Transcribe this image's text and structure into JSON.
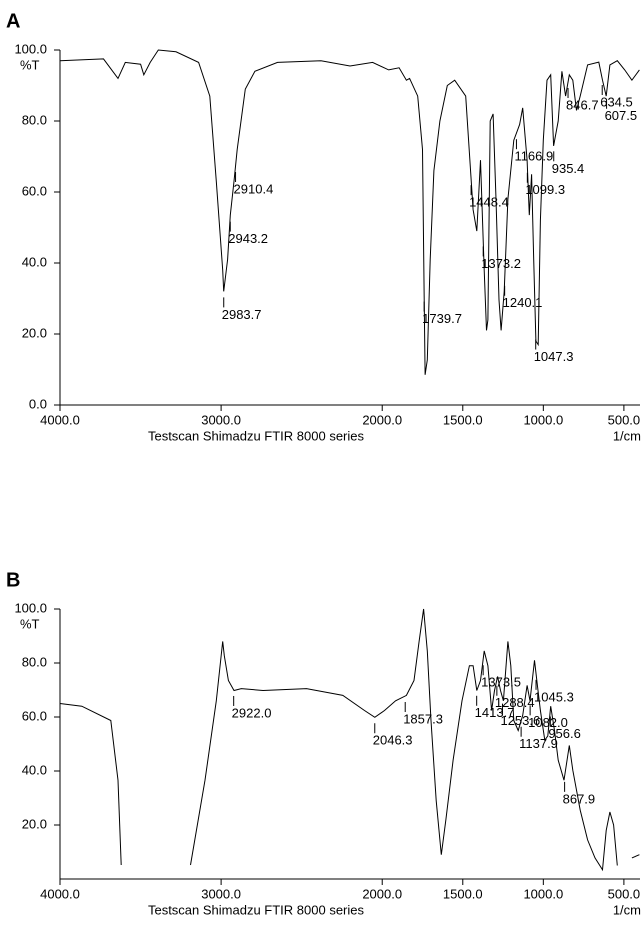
{
  "chart_data": [
    {
      "type": "line",
      "title": "A",
      "ylabel": "%T",
      "xlabel": "Testscan Shimadzu FTIR 8000 series",
      "xunit": "1/cm",
      "xlim": [
        4000,
        400
      ],
      "ylim": [
        0,
        100
      ],
      "xticks": [
        {
          "value": 4000,
          "label": "4000.0"
        },
        {
          "value": 3000,
          "label": "3000.0"
        },
        {
          "value": 2000,
          "label": "2000.0"
        },
        {
          "value": 1500,
          "label": "1500.0"
        },
        {
          "value": 1000,
          "label": "1000.0"
        },
        {
          "value": 500,
          "label": "500.0"
        }
      ],
      "yticks": [
        {
          "value": 0,
          "label": "0.0"
        },
        {
          "value": 20,
          "label": "20.0"
        },
        {
          "value": 40,
          "label": "40.0"
        },
        {
          "value": 60,
          "label": "60.0"
        },
        {
          "value": 80,
          "label": "80.0"
        },
        {
          "value": 100,
          "label": "100.0"
        }
      ],
      "x": [
        4000,
        3730,
        3640,
        3595,
        3500,
        3480,
        3440,
        3390,
        3280,
        3140,
        3070,
        3030,
        2990,
        2983.7,
        2960,
        2943,
        2920,
        2900,
        2850,
        2790,
        2650,
        2380,
        2200,
        2060,
        1960,
        1895,
        1850,
        1830,
        1780,
        1750,
        1740,
        1734,
        1720,
        1702,
        1679,
        1642,
        1596,
        1550,
        1482,
        1436,
        1413,
        1390,
        1367,
        1353,
        1344,
        1330,
        1312,
        1294,
        1275,
        1262,
        1243,
        1220,
        1183,
        1147,
        1128,
        1101,
        1087,
        1073,
        1060,
        1046,
        1032,
        1018,
        1000,
        977,
        954,
        936,
        908,
        885,
        862,
        839,
        817,
        794,
        771,
        725,
        656,
        633,
        610,
        587,
        541,
        495,
        450,
        404
      ],
      "series": [
        {
          "name": "A",
          "color": "#000000",
          "values": [
            97,
            97.5,
            92,
            96.5,
            96,
            93,
            96.5,
            100,
            99.5,
            96.5,
            87,
            63,
            38,
            32,
            41,
            53.5,
            63,
            72,
            89,
            94,
            96.5,
            97,
            95.5,
            96.5,
            94.4,
            95,
            91.5,
            92,
            87,
            72,
            32,
            8.5,
            12.7,
            41,
            66,
            80,
            90,
            91.5,
            87,
            55,
            49,
            69,
            38,
            21,
            24,
            80,
            82,
            58,
            29.6,
            21,
            32,
            58,
            74.6,
            79,
            83.7,
            69,
            53.5,
            65,
            41,
            18,
            17,
            52,
            74.6,
            91.5,
            93,
            73,
            80,
            94,
            87,
            93,
            91.5,
            83,
            87,
            95.8,
            96.6,
            91.5,
            87,
            95.8,
            97,
            94.4,
            91.5,
            94.4
          ]
        }
      ],
      "peaks": [
        2983.7,
        2943.2,
        2910.4,
        1739.7,
        1448.4,
        1373.2,
        1240.1,
        1166.9,
        1099.3,
        1047.3,
        935.4,
        846.7,
        634.5,
        607.5
      ],
      "peak_labels": [
        "2983.7",
        "2943.2",
        "2910.4",
        "1739.7",
        "1448.4",
        "1373.2",
        "1240.1",
        "1166.9",
        "1099.3",
        "1047.3",
        "935.4",
        "846.7",
        "634.5",
        "607.5"
      ]
    },
    {
      "type": "line",
      "title": "B",
      "ylabel": "%T",
      "xlabel": "Testscan Shimadzu FTIR 8000 series",
      "xunit": "1/cm",
      "xlim": [
        4000,
        400
      ],
      "ylim": [
        0,
        100
      ],
      "xticks": [
        {
          "value": 4000,
          "label": "4000.0"
        },
        {
          "value": 3000,
          "label": "3000.0"
        },
        {
          "value": 2000,
          "label": "2000.0"
        },
        {
          "value": 1500,
          "label": "1500.0"
        },
        {
          "value": 1000,
          "label": "1000.0"
        },
        {
          "value": 500,
          "label": "500.0"
        }
      ],
      "yticks": [
        {
          "value": 20,
          "label": "20.0"
        },
        {
          "value": 40,
          "label": "40.0"
        },
        {
          "value": 60,
          "label": "60.0"
        },
        {
          "value": 80,
          "label": "80.0"
        },
        {
          "value": 100,
          "label": "100.0"
        }
      ],
      "x": [
        4000,
        3865,
        3685,
        3640,
        3620,
        3400,
        3190,
        3100,
        3030,
        2990,
        2980,
        2955,
        2920,
        2875,
        2740,
        2470,
        2245,
        2110,
        2046,
        1986,
        1917,
        1850,
        1803,
        1771,
        1743,
        1720,
        1697,
        1665,
        1633,
        1605,
        1560,
        1505,
        1459,
        1436,
        1413,
        1390,
        1367,
        1344,
        1321,
        1303,
        1284,
        1266,
        1248,
        1220,
        1202,
        1183,
        1156,
        1128,
        1101,
        1083,
        1055,
        1037,
        1018,
        991,
        972,
        954,
        931,
        908,
        872,
        839,
        817,
        771,
        725,
        679,
        633,
        610,
        587,
        564,
        541,
        500,
        450,
        404
      ],
      "series": [
        {
          "name": "B",
          "color": "#000000",
          "values": [
            65,
            64,
            58.7,
            36.6,
            5.2,
            null,
            5.2,
            36.6,
            66,
            88,
            82.7,
            73.5,
            69.8,
            70.5,
            69.8,
            70.5,
            68,
            62.4,
            59.9,
            62.4,
            66,
            68,
            73.5,
            88,
            100,
            84.5,
            58.7,
            29,
            9,
            22,
            44,
            66,
            79,
            79,
            69.8,
            73.5,
            84.5,
            79,
            62.4,
            69.8,
            75,
            69.8,
            66,
            88,
            79,
            58.7,
            55,
            60.6,
            71.7,
            66,
            81,
            71.7,
            62.4,
            51.4,
            53,
            64,
            55,
            44,
            36.6,
            49.5,
            40.3,
            25.5,
            14.5,
            7.8,
            3.4,
            18,
            24.8,
            20,
            5,
            null,
            7.8,
            9
          ]
        }
      ],
      "peaks": [
        2922.0,
        2046.3,
        1857.3,
        1413.7,
        1373.5,
        1288.4,
        1253.6,
        1137.9,
        1082.0,
        1045.3,
        956.6,
        867.9
      ],
      "peak_labels": [
        "2922.0",
        "2046.3",
        "1857.3",
        "1413.7",
        "1373.5",
        "1288.4",
        "1253.6",
        "1137.9",
        "1082.0",
        "1045.3",
        "956.6",
        "867.9"
      ]
    }
  ]
}
